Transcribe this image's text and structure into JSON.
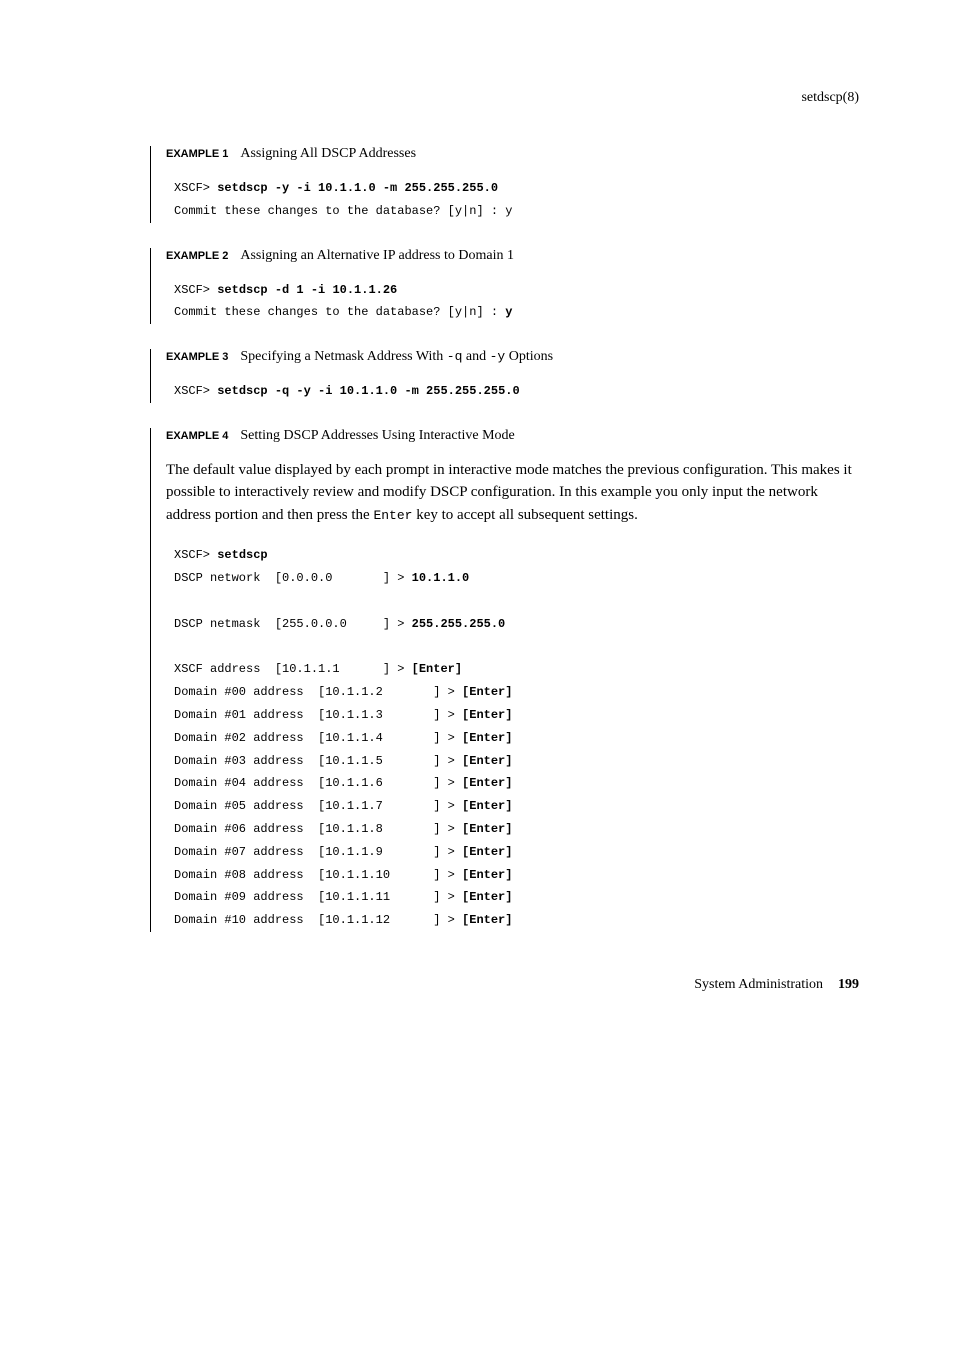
{
  "header": {
    "cmd": "setdscp(8)"
  },
  "examples": {
    "ex1": {
      "label": "EXAMPLE 1",
      "title": "Assigning All DSCP Addresses",
      "code": {
        "prompt1_pre": "XSCF> ",
        "prompt1_cmd": "setdscp -y -i 10.1.1.0 -m 255.255.255.0",
        "out1": "Commit these changes to the database? [y|n] : y"
      }
    },
    "ex2": {
      "label": "EXAMPLE 2",
      "title": "Assigning an Alternative IP address to Domain 1",
      "code": {
        "prompt1_pre": "XSCF> ",
        "prompt1_cmd": "setdscp -d 1 -i 10.1.1.26",
        "out1_pre": "Commit these changes to the database? [y|n] : ",
        "out1_ans": "y"
      }
    },
    "ex3": {
      "label": "EXAMPLE 3",
      "title_pre": "Specifying a Netmask Address With ",
      "opt1": "-q",
      "title_mid": " and ",
      "opt2": "-y",
      "title_post": " Options",
      "code": {
        "prompt1_pre": "XSCF> ",
        "prompt1_cmd": "setdscp -q -y -i 10.1.1.0 -m 255.255.255.0"
      }
    },
    "ex4": {
      "label": "EXAMPLE 4",
      "title": "Setting DSCP Addresses Using Interactive Mode"
    }
  },
  "body_paragraph": {
    "t1": "The default value displayed by each prompt in interactive mode matches the previous configuration. This makes it possible to interactively review and modify DSCP configuration. In this example you only input the network address portion and then press the ",
    "key": "Enter",
    "t2": " key to accept all subsequent settings."
  },
  "interactive": {
    "prompt_pre": "XSCF> ",
    "prompt_cmd": "setdscp",
    "net_label": "DSCP network  [0.0.0.0       ] > ",
    "net_val": "10.1.1.0",
    "mask_label": "DSCP netmask  [255.0.0.0     ] > ",
    "mask_val": "255.255.255.0",
    "xscf_label": "XSCF address  [10.1.1.1      ] > ",
    "enter": "[Enter]",
    "domains": [
      {
        "label": "Domain #00 address  [10.1.1.2       ] > "
      },
      {
        "label": "Domain #01 address  [10.1.1.3       ] > "
      },
      {
        "label": "Domain #02 address  [10.1.1.4       ] > "
      },
      {
        "label": "Domain #03 address  [10.1.1.5       ] > "
      },
      {
        "label": "Domain #04 address  [10.1.1.6       ] > "
      },
      {
        "label": "Domain #05 address  [10.1.1.7       ] > "
      },
      {
        "label": "Domain #06 address  [10.1.1.8       ] > "
      },
      {
        "label": "Domain #07 address  [10.1.1.9       ] > "
      },
      {
        "label": "Domain #08 address  [10.1.1.10      ] > "
      },
      {
        "label": "Domain #09 address  [10.1.1.11      ] > "
      },
      {
        "label": "Domain #10 address  [10.1.1.12      ] > "
      }
    ]
  },
  "footer": {
    "text": "System Administration",
    "page": "199"
  }
}
